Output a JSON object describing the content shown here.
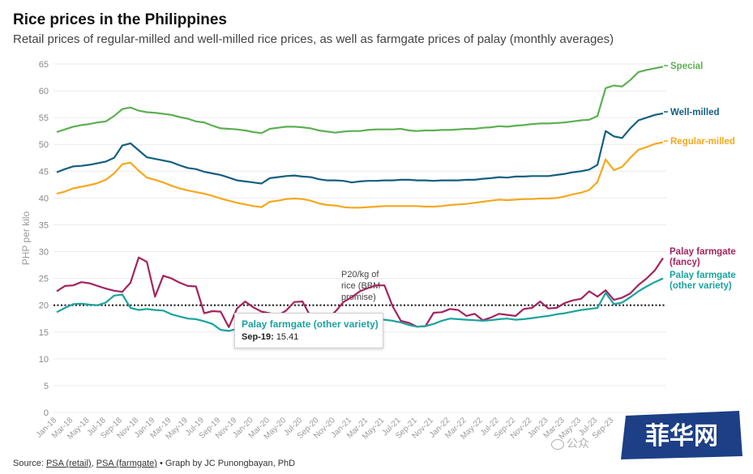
{
  "header": {
    "title": "Rice prices in the Philippines",
    "subtitle": "Retail prices of regular-milled and well-milled rice prices, as well as farmgate prices of palay (monthly averages)"
  },
  "footer": {
    "source_prefix": "Source: ",
    "source_retail": "PSA (retail)",
    "separator": ", ",
    "source_farmgate": "PSA (farmgate)",
    "credit": " • Graph by JC Punongbayan, PhD"
  },
  "tooltip": {
    "series": "Palay farmgate (other variety)",
    "date": "Sep-19:",
    "value": "15.41"
  },
  "watermark": {
    "brand": "菲华网",
    "wechat_text": "公众"
  },
  "colors": {
    "special": "#5cb052",
    "well_milled": "#13607f",
    "regular_milled": "#f5a81c",
    "palay_fancy": "#a3245e",
    "palay_other": "#1aa3a0",
    "reference_line": "#222222"
  },
  "chart_data": {
    "type": "line",
    "title": "Rice prices in the Philippines",
    "ylabel": "PHP per kilo",
    "ylim": [
      0,
      65
    ],
    "yticks": [
      0,
      5,
      10,
      15,
      20,
      25,
      30,
      35,
      40,
      45,
      50,
      55,
      60,
      65
    ],
    "grid": true,
    "legend": "direct labels at right end of lines",
    "x": [
      "Jan-18",
      "Feb-18",
      "Mar-18",
      "Apr-18",
      "May-18",
      "Jun-18",
      "Jul-18",
      "Aug-18",
      "Sep-18",
      "Oct-18",
      "Nov-18",
      "Dec-18",
      "Jan-19",
      "Feb-19",
      "Mar-19",
      "Apr-19",
      "May-19",
      "Jun-19",
      "Jul-19",
      "Aug-19",
      "Sep-19",
      "Oct-19",
      "Nov-19",
      "Dec-19",
      "Jan-20",
      "Feb-20",
      "Mar-20",
      "Apr-20",
      "May-20",
      "Jun-20",
      "Jul-20",
      "Aug-20",
      "Sep-20",
      "Oct-20",
      "Nov-20",
      "Dec-20",
      "Jan-21",
      "Feb-21",
      "Mar-21",
      "Apr-21",
      "May-21",
      "Jun-21",
      "Jul-21",
      "Aug-21",
      "Sep-21",
      "Oct-21",
      "Nov-21",
      "Dec-21",
      "Jan-22",
      "Feb-22",
      "Mar-22",
      "Apr-22",
      "May-22",
      "Jun-22",
      "Jul-22",
      "Aug-22",
      "Sep-22",
      "Oct-22",
      "Nov-22",
      "Dec-22",
      "Jan-23",
      "Feb-23",
      "Mar-23",
      "Apr-23",
      "May-23",
      "Jun-23",
      "Jul-23",
      "Aug-23",
      "Sep-23",
      "Oct-23",
      "Nov-23",
      "Dec-23",
      "Jan-24",
      "Feb-24",
      "Mar-24"
    ],
    "xtick_labels": [
      "Jan-18",
      "Mar-18",
      "May-18",
      "Jul-18",
      "Sep-18",
      "Nov-18",
      "Jan-19",
      "Mar-19",
      "May-19",
      "Jul-19",
      "Sep-19",
      "Nov-19",
      "Jan-20",
      "Mar-20",
      "May-20",
      "Jul-20",
      "Sep-20",
      "Nov-20",
      "Jan-21",
      "Mar-21",
      "May-21",
      "Jul-21",
      "Sep-21",
      "Nov-21",
      "Jan-22",
      "Mar-22",
      "May-22",
      "Jul-22",
      "Sep-22",
      "Nov-22",
      "Jan-23",
      "Mar-23",
      "May-23",
      "Jul-23",
      "Sep-23"
    ],
    "series": [
      {
        "name": "Special",
        "color_key": "special",
        "values": [
          52.3,
          52.8,
          53.3,
          53.6,
          53.8,
          54.1,
          54.3,
          55.3,
          56.6,
          56.9,
          56.3,
          56.0,
          55.9,
          55.7,
          55.5,
          55.1,
          54.8,
          54.3,
          54.1,
          53.5,
          53.0,
          52.9,
          52.8,
          52.6,
          52.3,
          52.1,
          52.9,
          53.1,
          53.3,
          53.3,
          53.2,
          53.0,
          52.6,
          52.4,
          52.2,
          52.4,
          52.5,
          52.5,
          52.7,
          52.8,
          52.8,
          52.8,
          52.9,
          52.6,
          52.5,
          52.6,
          52.6,
          52.7,
          52.7,
          52.8,
          52.9,
          52.9,
          53.1,
          53.2,
          53.4,
          53.3,
          53.5,
          53.6,
          53.8,
          53.9,
          53.9,
          54.0,
          54.1,
          54.3,
          54.5,
          54.6,
          55.3,
          60.5,
          61.0,
          60.8,
          62.0,
          63.5,
          63.9,
          64.2,
          64.5
        ]
      },
      {
        "name": "Well-milled",
        "color_key": "well_milled",
        "values": [
          44.8,
          45.4,
          45.9,
          46.0,
          46.2,
          46.5,
          46.8,
          47.5,
          49.8,
          50.2,
          48.9,
          47.6,
          47.3,
          47.0,
          46.7,
          46.1,
          45.6,
          45.4,
          44.9,
          44.6,
          44.3,
          43.8,
          43.3,
          43.1,
          42.9,
          42.7,
          43.7,
          43.9,
          44.1,
          44.2,
          44.0,
          43.9,
          43.5,
          43.3,
          43.3,
          43.2,
          42.9,
          43.1,
          43.2,
          43.2,
          43.3,
          43.3,
          43.4,
          43.4,
          43.3,
          43.3,
          43.2,
          43.3,
          43.3,
          43.3,
          43.4,
          43.4,
          43.6,
          43.7,
          43.9,
          43.8,
          44.0,
          44.0,
          44.1,
          44.1,
          44.1,
          44.3,
          44.5,
          44.8,
          45.0,
          45.3,
          46.2,
          52.5,
          51.5,
          51.2,
          53.0,
          54.5,
          55.0,
          55.5,
          55.8
        ]
      },
      {
        "name": "Regular-milled",
        "color_key": "regular_milled",
        "values": [
          40.8,
          41.2,
          41.8,
          42.1,
          42.4,
          42.8,
          43.4,
          44.6,
          46.3,
          46.6,
          45.1,
          43.8,
          43.4,
          42.9,
          42.3,
          41.8,
          41.4,
          41.1,
          40.8,
          40.4,
          39.9,
          39.5,
          39.1,
          38.8,
          38.5,
          38.3,
          39.3,
          39.5,
          39.8,
          39.9,
          39.8,
          39.5,
          39.0,
          38.7,
          38.6,
          38.3,
          38.2,
          38.2,
          38.3,
          38.4,
          38.5,
          38.5,
          38.5,
          38.5,
          38.5,
          38.4,
          38.4,
          38.5,
          38.7,
          38.8,
          38.9,
          39.1,
          39.3,
          39.5,
          39.7,
          39.6,
          39.7,
          39.8,
          39.8,
          39.9,
          39.9,
          40.0,
          40.3,
          40.7,
          41.0,
          41.5,
          43.0,
          47.2,
          45.2,
          45.8,
          47.5,
          49.0,
          49.5,
          50.1,
          50.4
        ]
      },
      {
        "name": "Palay farmgate (fancy)",
        "color_key": "palay_fancy",
        "values": [
          22.6,
          23.6,
          23.7,
          24.3,
          24.1,
          23.6,
          23.1,
          22.7,
          22.5,
          24.2,
          28.9,
          28.1,
          21.6,
          25.5,
          25.0,
          24.2,
          23.6,
          23.5,
          18.5,
          18.9,
          18.8,
          15.9,
          19.4,
          20.7,
          19.6,
          18.8,
          18.5,
          18.1,
          19.0,
          20.6,
          20.7,
          17.8,
          17.3,
          17.5,
          18.8,
          20.6,
          21.5,
          22.6,
          23.2,
          23.7,
          23.7,
          19.8,
          17.1,
          16.7,
          16.0,
          16.1,
          18.6,
          18.7,
          19.3,
          19.1,
          18.0,
          18.4,
          17.2,
          17.7,
          18.4,
          18.2,
          18.0,
          19.3,
          19.5,
          20.7,
          19.4,
          19.5,
          20.4,
          20.9,
          21.2,
          22.6,
          21.6,
          22.8,
          21.0,
          21.4,
          22.2,
          23.8,
          25.0,
          26.5,
          28.8
        ]
      },
      {
        "name": "Palay farmgate (other variety)",
        "color_key": "palay_other",
        "values": [
          18.7,
          19.5,
          20.2,
          20.3,
          20.1,
          20.0,
          20.5,
          21.8,
          22.0,
          19.5,
          19.1,
          19.3,
          19.1,
          19.0,
          18.3,
          17.9,
          17.5,
          17.4,
          17.0,
          16.5,
          15.41,
          15.2,
          15.6,
          15.7,
          16.3,
          16.6,
          16.4,
          16.7,
          17.0,
          17.3,
          17.5,
          17.3,
          17.2,
          17.0,
          17.0,
          17.1,
          17.2,
          17.1,
          17.2,
          17.3,
          17.3,
          17.1,
          16.8,
          16.3,
          16.0,
          16.1,
          16.5,
          17.1,
          17.5,
          17.4,
          17.3,
          17.2,
          17.1,
          17.2,
          17.4,
          17.5,
          17.3,
          17.4,
          17.6,
          17.8,
          18.0,
          18.3,
          18.5,
          18.8,
          19.1,
          19.3,
          19.5,
          22.3,
          20.2,
          20.5,
          21.5,
          22.6,
          23.5,
          24.3,
          25.0
        ]
      }
    ],
    "reference_line": {
      "value": 20,
      "label_lines": [
        "P20/kg of",
        "rice (BBM",
        "promise)"
      ]
    }
  }
}
